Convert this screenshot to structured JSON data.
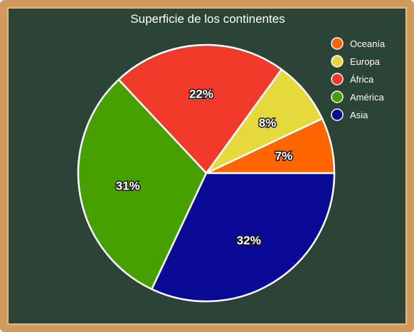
{
  "chart_data": {
    "type": "pie",
    "title": "Superficie de los continentes",
    "legend_position": "top-right",
    "categories": [
      "Oceanía",
      "Europa",
      "África",
      "América",
      "Asia"
    ],
    "values": [
      7,
      8,
      22,
      31,
      32
    ],
    "labels": [
      "7%",
      "8%",
      "22%",
      "31%",
      "32%"
    ],
    "colors": [
      "#ff6600",
      "#e5d93c",
      "#f23a2a",
      "#45a000",
      "#0a0a96"
    ]
  }
}
